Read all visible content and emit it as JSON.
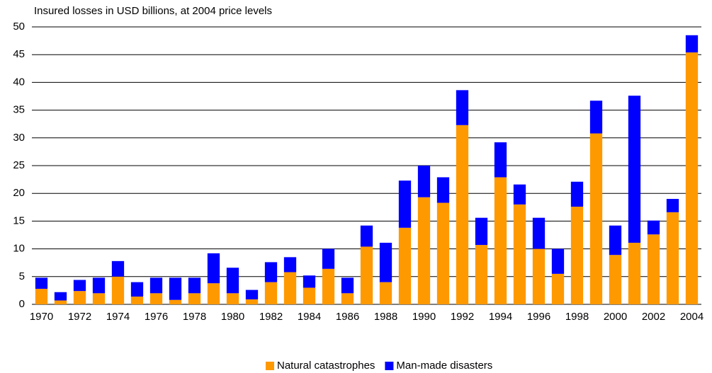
{
  "chart_data": {
    "type": "bar",
    "stacked": true,
    "title": "Insured losses in USD billions, at 2004 price levels",
    "categories": [
      "1970",
      null,
      "1972",
      null,
      "1974",
      null,
      "1976",
      null,
      "1978",
      null,
      "1980",
      null,
      "1982",
      null,
      "1984",
      null,
      "1986",
      null,
      "1988",
      null,
      "1990",
      null,
      "1992",
      null,
      "1994",
      null,
      "1996",
      null,
      "1998",
      null,
      "2000",
      null,
      "2002",
      null,
      "2004"
    ],
    "series": [
      {
        "name": "Natural catastrophes",
        "color": "#ff9900",
        "values": [
          2.8,
          0.7,
          2.4,
          2.0,
          5.0,
          1.4,
          2.0,
          0.8,
          2.0,
          3.8,
          2.0,
          0.9,
          4.0,
          5.8,
          3.0,
          6.4,
          2.0,
          10.4,
          4.0,
          13.8,
          19.3,
          18.3,
          32.3,
          10.7,
          22.9,
          18.0,
          10.0,
          5.5,
          17.6,
          30.8,
          8.9,
          11.1,
          12.6,
          16.6,
          45.4
        ]
      },
      {
        "name": "Man-made disasters",
        "color": "#0000ff",
        "values": [
          2.0,
          1.5,
          2.0,
          2.8,
          2.8,
          2.6,
          2.8,
          4.0,
          2.8,
          5.4,
          4.6,
          1.7,
          3.6,
          2.7,
          2.2,
          3.6,
          2.8,
          3.8,
          7.1,
          8.5,
          5.7,
          4.6,
          6.3,
          4.9,
          6.3,
          3.6,
          5.6,
          4.5,
          4.5,
          5.9,
          5.3,
          26.5,
          2.5,
          2.4,
          3.1
        ]
      }
    ],
    "ylim": [
      0,
      50
    ],
    "yticks": [
      0,
      5,
      10,
      15,
      20,
      25,
      30,
      35,
      40,
      45,
      50
    ],
    "grid": true,
    "legend": "bottom"
  }
}
